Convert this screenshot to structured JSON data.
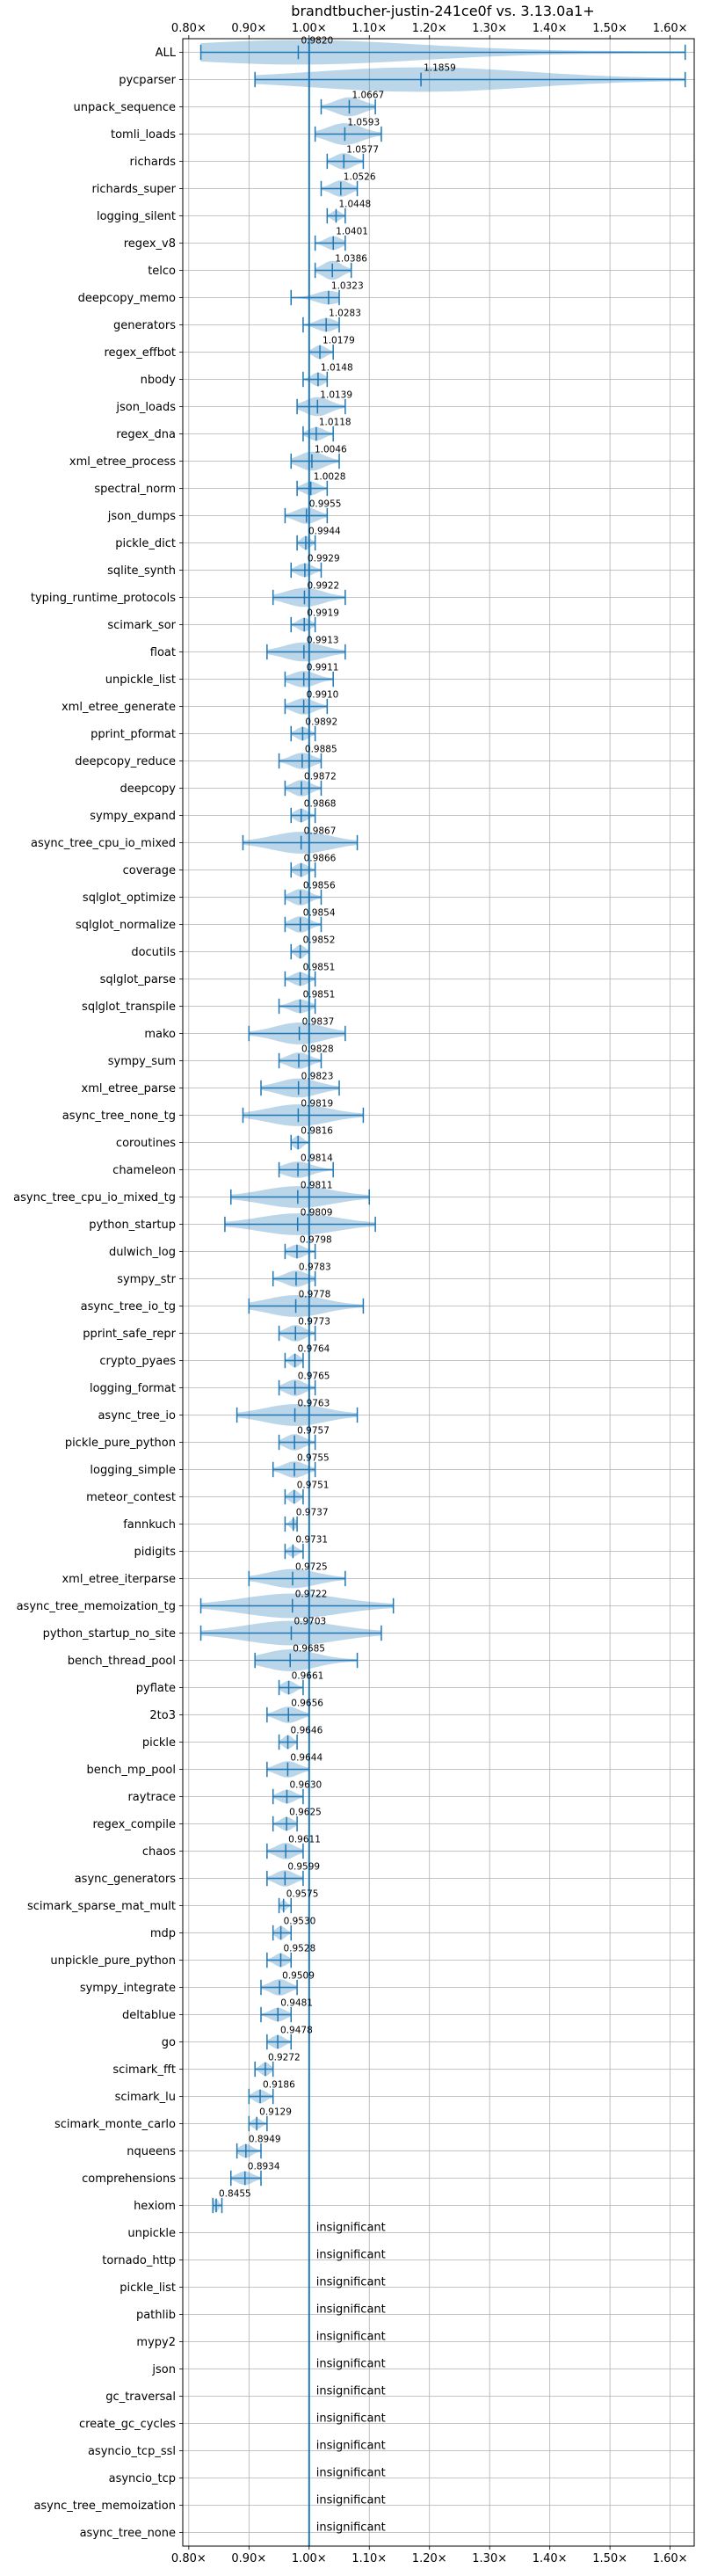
{
  "chart_data": {
    "type": "violin",
    "title": "brandtbucher-justin-241ce0f vs. 3.13.0a1+",
    "xlim": [
      0.79,
      1.64
    ],
    "reference": 1.0,
    "grid": true,
    "xticks": [
      0.8,
      0.9,
      1.0,
      1.1,
      1.2,
      1.3,
      1.4,
      1.5,
      1.6
    ],
    "xtick_labels": [
      "0.80×",
      "0.90×",
      "1.00×",
      "1.10×",
      "1.20×",
      "1.30×",
      "1.40×",
      "1.50×",
      "1.60×"
    ],
    "insignificant_label": "insignificant",
    "color": "#1f77b4",
    "benchmarks": [
      {
        "name": "ALL",
        "value": 0.982,
        "label": "0.9820",
        "min": 0.82,
        "max": 1.625,
        "w": 0.9
      },
      {
        "name": "pycparser",
        "value": 1.1859,
        "label": "1.1859",
        "min": 0.91,
        "max": 1.625,
        "w": 0.9
      },
      {
        "name": "unpack_sequence",
        "value": 1.0667,
        "label": "1.0667",
        "min": 1.02,
        "max": 1.11,
        "w": 0.7
      },
      {
        "name": "tomli_loads",
        "value": 1.0593,
        "label": "1.0593",
        "min": 1.01,
        "max": 1.12,
        "w": 0.8
      },
      {
        "name": "richards",
        "value": 1.0577,
        "label": "1.0577",
        "min": 1.03,
        "max": 1.09,
        "w": 0.6
      },
      {
        "name": "richards_super",
        "value": 1.0526,
        "label": "1.0526",
        "min": 1.02,
        "max": 1.08,
        "w": 0.6
      },
      {
        "name": "logging_silent",
        "value": 1.0448,
        "label": "1.0448",
        "min": 1.03,
        "max": 1.06,
        "w": 0.4
      },
      {
        "name": "regex_v8",
        "value": 1.0401,
        "label": "1.0401",
        "min": 1.01,
        "max": 1.06,
        "w": 0.5
      },
      {
        "name": "telco",
        "value": 1.0386,
        "label": "1.0386",
        "min": 1.01,
        "max": 1.07,
        "w": 0.7
      },
      {
        "name": "deepcopy_memo",
        "value": 1.0323,
        "label": "1.0323",
        "min": 0.97,
        "max": 1.05,
        "w": 0.5
      },
      {
        "name": "generators",
        "value": 1.0283,
        "label": "1.0283",
        "min": 0.99,
        "max": 1.05,
        "w": 0.5
      },
      {
        "name": "regex_effbot",
        "value": 1.0179,
        "label": "1.0179",
        "min": 1.0,
        "max": 1.04,
        "w": 0.5
      },
      {
        "name": "nbody",
        "value": 1.0148,
        "label": "1.0148",
        "min": 0.99,
        "max": 1.03,
        "w": 0.5
      },
      {
        "name": "json_loads",
        "value": 1.0139,
        "label": "1.0139",
        "min": 0.98,
        "max": 1.06,
        "w": 0.7
      },
      {
        "name": "regex_dna",
        "value": 1.0118,
        "label": "1.0118",
        "min": 0.99,
        "max": 1.04,
        "w": 0.5
      },
      {
        "name": "xml_etree_process",
        "value": 1.0046,
        "label": "1.0046",
        "min": 0.97,
        "max": 1.05,
        "w": 0.7
      },
      {
        "name": "spectral_norm",
        "value": 1.0028,
        "label": "1.0028",
        "min": 0.98,
        "max": 1.03,
        "w": 0.5
      },
      {
        "name": "json_dumps",
        "value": 0.9955,
        "label": "0.9955",
        "min": 0.96,
        "max": 1.03,
        "w": 0.6
      },
      {
        "name": "pickle_dict",
        "value": 0.9944,
        "label": "0.9944",
        "min": 0.98,
        "max": 1.01,
        "w": 0.5
      },
      {
        "name": "sqlite_synth",
        "value": 0.9929,
        "label": "0.9929",
        "min": 0.97,
        "max": 1.02,
        "w": 0.5
      },
      {
        "name": "typing_runtime_protocols",
        "value": 0.9922,
        "label": "0.9922",
        "min": 0.94,
        "max": 1.06,
        "w": 0.7
      },
      {
        "name": "scimark_sor",
        "value": 0.9919,
        "label": "0.9919",
        "min": 0.97,
        "max": 1.01,
        "w": 0.5
      },
      {
        "name": "float",
        "value": 0.9913,
        "label": "0.9913",
        "min": 0.93,
        "max": 1.06,
        "w": 0.7
      },
      {
        "name": "unpickle_list",
        "value": 0.9911,
        "label": "0.9911",
        "min": 0.96,
        "max": 1.04,
        "w": 0.6
      },
      {
        "name": "xml_etree_generate",
        "value": 0.991,
        "label": "0.9910",
        "min": 0.96,
        "max": 1.03,
        "w": 0.6
      },
      {
        "name": "pprint_pformat",
        "value": 0.9892,
        "label": "0.9892",
        "min": 0.97,
        "max": 1.01,
        "w": 0.5
      },
      {
        "name": "deepcopy_reduce",
        "value": 0.9885,
        "label": "0.9885",
        "min": 0.95,
        "max": 1.02,
        "w": 0.6
      },
      {
        "name": "deepcopy",
        "value": 0.9872,
        "label": "0.9872",
        "min": 0.96,
        "max": 1.02,
        "w": 0.6
      },
      {
        "name": "sympy_expand",
        "value": 0.9868,
        "label": "0.9868",
        "min": 0.97,
        "max": 1.01,
        "w": 0.5
      },
      {
        "name": "async_tree_cpu_io_mixed",
        "value": 0.9867,
        "label": "0.9867",
        "min": 0.89,
        "max": 1.08,
        "w": 0.8
      },
      {
        "name": "coverage",
        "value": 0.9866,
        "label": "0.9866",
        "min": 0.97,
        "max": 1.01,
        "w": 0.5
      },
      {
        "name": "sqlglot_optimize",
        "value": 0.9856,
        "label": "0.9856",
        "min": 0.96,
        "max": 1.02,
        "w": 0.6
      },
      {
        "name": "sqlglot_normalize",
        "value": 0.9854,
        "label": "0.9854",
        "min": 0.96,
        "max": 1.02,
        "w": 0.6
      },
      {
        "name": "docutils",
        "value": 0.9852,
        "label": "0.9852",
        "min": 0.97,
        "max": 1.0,
        "w": 0.5
      },
      {
        "name": "sqlglot_parse",
        "value": 0.9851,
        "label": "0.9851",
        "min": 0.96,
        "max": 1.01,
        "w": 0.5
      },
      {
        "name": "sqlglot_transpile",
        "value": 0.9851,
        "label": "0.9851",
        "min": 0.95,
        "max": 1.01,
        "w": 0.5
      },
      {
        "name": "mako",
        "value": 0.9837,
        "label": "0.9837",
        "min": 0.9,
        "max": 1.06,
        "w": 0.8
      },
      {
        "name": "sympy_sum",
        "value": 0.9828,
        "label": "0.9828",
        "min": 0.95,
        "max": 1.02,
        "w": 0.6
      },
      {
        "name": "xml_etree_parse",
        "value": 0.9823,
        "label": "0.9823",
        "min": 0.92,
        "max": 1.05,
        "w": 0.7
      },
      {
        "name": "async_tree_none_tg",
        "value": 0.9819,
        "label": "0.9819",
        "min": 0.89,
        "max": 1.09,
        "w": 0.8
      },
      {
        "name": "coroutines",
        "value": 0.9816,
        "label": "0.9816",
        "min": 0.97,
        "max": 1.0,
        "w": 0.5
      },
      {
        "name": "chameleon",
        "value": 0.9814,
        "label": "0.9814",
        "min": 0.95,
        "max": 1.04,
        "w": 0.6
      },
      {
        "name": "async_tree_cpu_io_mixed_tg",
        "value": 0.9811,
        "label": "0.9811",
        "min": 0.87,
        "max": 1.1,
        "w": 0.8
      },
      {
        "name": "python_startup",
        "value": 0.9809,
        "label": "0.9809",
        "min": 0.86,
        "max": 1.11,
        "w": 0.8
      },
      {
        "name": "dulwich_log",
        "value": 0.9798,
        "label": "0.9798",
        "min": 0.96,
        "max": 1.01,
        "w": 0.5
      },
      {
        "name": "sympy_str",
        "value": 0.9783,
        "label": "0.9783",
        "min": 0.94,
        "max": 1.01,
        "w": 0.6
      },
      {
        "name": "async_tree_io_tg",
        "value": 0.9778,
        "label": "0.9778",
        "min": 0.9,
        "max": 1.09,
        "w": 0.8
      },
      {
        "name": "pprint_safe_repr",
        "value": 0.9773,
        "label": "0.9773",
        "min": 0.95,
        "max": 1.01,
        "w": 0.6
      },
      {
        "name": "crypto_pyaes",
        "value": 0.9764,
        "label": "0.9764",
        "min": 0.96,
        "max": 0.99,
        "w": 0.5
      },
      {
        "name": "logging_format",
        "value": 0.9765,
        "label": "0.9765",
        "min": 0.95,
        "max": 1.01,
        "w": 0.6
      },
      {
        "name": "async_tree_io",
        "value": 0.9763,
        "label": "0.9763",
        "min": 0.88,
        "max": 1.08,
        "w": 0.8
      },
      {
        "name": "pickle_pure_python",
        "value": 0.9757,
        "label": "0.9757",
        "min": 0.95,
        "max": 1.01,
        "w": 0.6
      },
      {
        "name": "logging_simple",
        "value": 0.9755,
        "label": "0.9755",
        "min": 0.94,
        "max": 1.01,
        "w": 0.6
      },
      {
        "name": "meteor_contest",
        "value": 0.9751,
        "label": "0.9751",
        "min": 0.96,
        "max": 0.99,
        "w": 0.5
      },
      {
        "name": "fannkuch",
        "value": 0.9737,
        "label": "0.9737",
        "min": 0.96,
        "max": 0.98,
        "w": 0.4
      },
      {
        "name": "pidigits",
        "value": 0.9731,
        "label": "0.9731",
        "min": 0.96,
        "max": 0.99,
        "w": 0.4
      },
      {
        "name": "xml_etree_iterparse",
        "value": 0.9725,
        "label": "0.9725",
        "min": 0.9,
        "max": 1.06,
        "w": 0.7
      },
      {
        "name": "async_tree_memoization_tg",
        "value": 0.9722,
        "label": "0.9722",
        "min": 0.82,
        "max": 1.14,
        "w": 0.9
      },
      {
        "name": "python_startup_no_site",
        "value": 0.9703,
        "label": "0.9703",
        "min": 0.82,
        "max": 1.12,
        "w": 0.9
      },
      {
        "name": "bench_thread_pool",
        "value": 0.9685,
        "label": "0.9685",
        "min": 0.91,
        "max": 1.08,
        "w": 0.8
      },
      {
        "name": "pyflate",
        "value": 0.9661,
        "label": "0.9661",
        "min": 0.95,
        "max": 0.99,
        "w": 0.5
      },
      {
        "name": "2to3",
        "value": 0.9656,
        "label": "0.9656",
        "min": 0.93,
        "max": 1.0,
        "w": 0.6
      },
      {
        "name": "pickle",
        "value": 0.9646,
        "label": "0.9646",
        "min": 0.95,
        "max": 0.98,
        "w": 0.5
      },
      {
        "name": "bench_mp_pool",
        "value": 0.9644,
        "label": "0.9644",
        "min": 0.93,
        "max": 1.0,
        "w": 0.6
      },
      {
        "name": "raytrace",
        "value": 0.963,
        "label": "0.9630",
        "min": 0.94,
        "max": 0.99,
        "w": 0.5
      },
      {
        "name": "regex_compile",
        "value": 0.9625,
        "label": "0.9625",
        "min": 0.94,
        "max": 0.98,
        "w": 0.5
      },
      {
        "name": "chaos",
        "value": 0.9611,
        "label": "0.9611",
        "min": 0.93,
        "max": 0.99,
        "w": 0.6
      },
      {
        "name": "async_generators",
        "value": 0.9599,
        "label": "0.9599",
        "min": 0.93,
        "max": 0.99,
        "w": 0.6
      },
      {
        "name": "scimark_sparse_mat_mult",
        "value": 0.9575,
        "label": "0.9575",
        "min": 0.95,
        "max": 0.97,
        "w": 0.4
      },
      {
        "name": "mdp",
        "value": 0.953,
        "label": "0.9530",
        "min": 0.94,
        "max": 0.97,
        "w": 0.5
      },
      {
        "name": "unpickle_pure_python",
        "value": 0.9528,
        "label": "0.9528",
        "min": 0.93,
        "max": 0.97,
        "w": 0.5
      },
      {
        "name": "sympy_integrate",
        "value": 0.9509,
        "label": "0.9509",
        "min": 0.92,
        "max": 0.98,
        "w": 0.6
      },
      {
        "name": "deltablue",
        "value": 0.9481,
        "label": "0.9481",
        "min": 0.92,
        "max": 0.97,
        "w": 0.5
      },
      {
        "name": "go",
        "value": 0.9478,
        "label": "0.9478",
        "min": 0.93,
        "max": 0.97,
        "w": 0.5
      },
      {
        "name": "scimark_fft",
        "value": 0.9272,
        "label": "0.9272",
        "min": 0.91,
        "max": 0.94,
        "w": 0.5
      },
      {
        "name": "scimark_lu",
        "value": 0.9186,
        "label": "0.9186",
        "min": 0.9,
        "max": 0.94,
        "w": 0.5
      },
      {
        "name": "scimark_monte_carlo",
        "value": 0.9129,
        "label": "0.9129",
        "min": 0.9,
        "max": 0.93,
        "w": 0.4
      },
      {
        "name": "nqueens",
        "value": 0.8949,
        "label": "0.8949",
        "min": 0.88,
        "max": 0.92,
        "w": 0.5
      },
      {
        "name": "comprehensions",
        "value": 0.8934,
        "label": "0.8934",
        "min": 0.87,
        "max": 0.92,
        "w": 0.5
      },
      {
        "name": "hexiom",
        "value": 0.8455,
        "label": "0.8455",
        "min": 0.84,
        "max": 0.855,
        "w": 0.5
      },
      {
        "name": "unpickle",
        "insignificant": true
      },
      {
        "name": "tornado_http",
        "insignificant": true
      },
      {
        "name": "pickle_list",
        "insignificant": true
      },
      {
        "name": "pathlib",
        "insignificant": true
      },
      {
        "name": "mypy2",
        "insignificant": true
      },
      {
        "name": "json",
        "insignificant": true
      },
      {
        "name": "gc_traversal",
        "insignificant": true
      },
      {
        "name": "create_gc_cycles",
        "insignificant": true
      },
      {
        "name": "asyncio_tcp_ssl",
        "insignificant": true
      },
      {
        "name": "asyncio_tcp",
        "insignificant": true
      },
      {
        "name": "async_tree_memoization",
        "insignificant": true
      },
      {
        "name": "async_tree_none",
        "insignificant": true
      }
    ]
  }
}
